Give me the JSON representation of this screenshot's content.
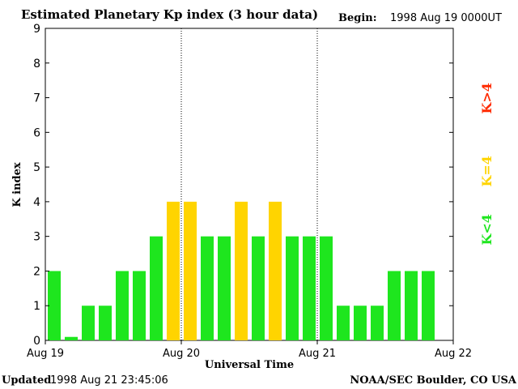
{
  "header": {
    "title": "Estimated Planetary Kp index (3 hour data)",
    "begin_label": "Begin:",
    "begin_value": "1998 Aug 19 0000UT"
  },
  "footer": {
    "updated_label": "Updated",
    "updated_value": "1998 Aug 21 23:45:06",
    "source": "NOAA/SEC Boulder, CO USA"
  },
  "legend": {
    "items": [
      {
        "text": "K>4",
        "color": "#ff2a00"
      },
      {
        "text": "K=4",
        "color": "#ffd400"
      },
      {
        "text": "K<4",
        "color": "#1ee61e"
      }
    ]
  },
  "chart_data": {
    "type": "bar",
    "title": "Estimated Planetary Kp index (3 hour data)",
    "xlabel": "Universal Time",
    "ylabel": "K index",
    "ylim": [
      0,
      9
    ],
    "yticks": [
      "0",
      "1",
      "2",
      "3",
      "4",
      "5",
      "6",
      "7",
      "8",
      "9"
    ],
    "xticks": [
      "Aug 19",
      "Aug 20",
      "Aug 21",
      "Aug 22"
    ],
    "day_dividers": [
      "Aug 20",
      "Aug 21"
    ],
    "bins_total": 24,
    "values": [
      2,
      0.1,
      1,
      1,
      2,
      2,
      3,
      4,
      4,
      3,
      3,
      4,
      3,
      4,
      3,
      3,
      3,
      1,
      1,
      1,
      2,
      2,
      2
    ],
    "colors": {
      "low": "#1ee61e",
      "equal": "#ffd400",
      "high": "#ff2a00"
    },
    "grid": false
  }
}
